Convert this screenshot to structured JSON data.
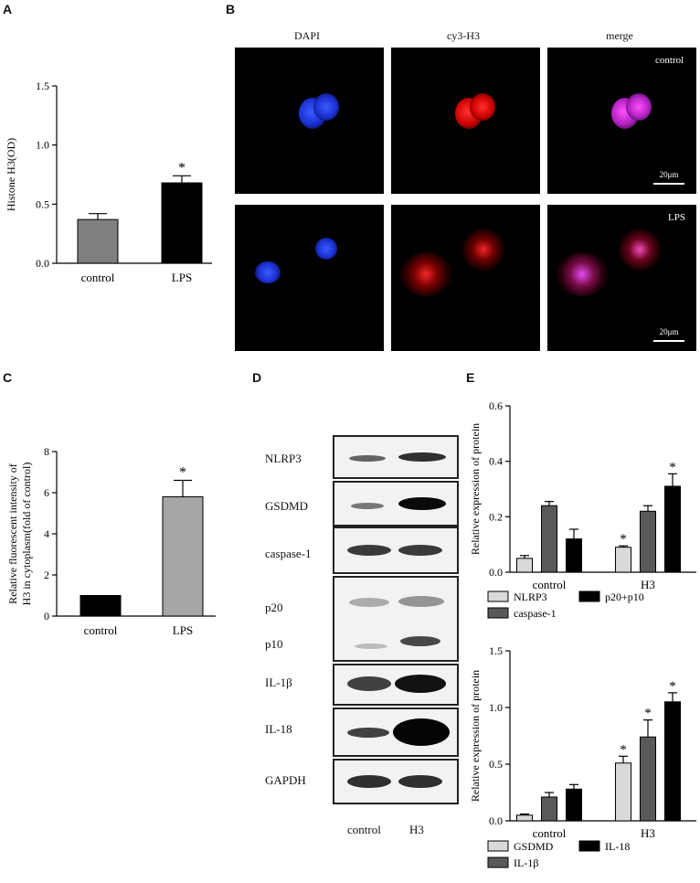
{
  "panels": {
    "A": "A",
    "B": "B",
    "C": "C",
    "D": "D",
    "E": "E"
  },
  "chart_A": {
    "type": "bar",
    "categories": [
      "control",
      "LPS"
    ],
    "values": [
      0.37,
      0.68
    ],
    "errors": [
      0.05,
      0.06
    ],
    "ylabel": "Histone H3(OD)",
    "ylim": [
      0,
      1.5
    ],
    "yticks": [
      "0.0",
      "0.5",
      "1.0",
      "1.5"
    ],
    "significance": [
      "",
      "*"
    ],
    "colors": [
      "#7f7f7f",
      "#000000"
    ]
  },
  "chart_C": {
    "type": "bar",
    "categories": [
      "control",
      "LPS"
    ],
    "values": [
      1.0,
      5.8
    ],
    "errors": [
      0.0,
      0.8
    ],
    "ylabel_line1": "Relative fluorescent intensity of",
    "ylabel_line2": "H3 in cytoplasm(fold of control)",
    "ylim": [
      0,
      8
    ],
    "yticks": [
      "0",
      "2",
      "4",
      "6",
      "8"
    ],
    "significance": [
      "",
      "*"
    ],
    "colors": [
      "#000000",
      "#a6a6a6"
    ]
  },
  "chart_E1": {
    "type": "bar",
    "categories": [
      "control",
      "H3"
    ],
    "series": [
      {
        "name": "NLRP3",
        "values": [
          0.05,
          0.09
        ],
        "errors": [
          0.01,
          0.005
        ],
        "color": "#d9d9d9"
      },
      {
        "name": "caspase-1",
        "values": [
          0.24,
          0.22
        ],
        "errors": [
          0.015,
          0.02
        ],
        "color": "#595959"
      },
      {
        "name": "p20+p10",
        "values": [
          0.12,
          0.31
        ],
        "errors": [
          0.035,
          0.045
        ],
        "color": "#000000"
      }
    ],
    "significance": [
      [
        "",
        "",
        ""
      ],
      [
        "*",
        "",
        "*"
      ]
    ],
    "ylabel": "Relative expression of protein",
    "ylim": [
      0,
      0.6
    ],
    "yticks": [
      "0.0",
      "0.2",
      "0.4",
      "0.6"
    ]
  },
  "chart_E2": {
    "type": "bar",
    "categories": [
      "control",
      "H3"
    ],
    "series": [
      {
        "name": "GSDMD",
        "values": [
          0.05,
          0.51
        ],
        "errors": [
          0.01,
          0.06
        ],
        "color": "#d9d9d9"
      },
      {
        "name": "IL-1β",
        "values": [
          0.21,
          0.74
        ],
        "errors": [
          0.04,
          0.15
        ],
        "color": "#595959"
      },
      {
        "name": "IL-18",
        "values": [
          0.28,
          1.05
        ],
        "errors": [
          0.04,
          0.08
        ],
        "color": "#000000"
      }
    ],
    "significance": [
      [
        "",
        "",
        ""
      ],
      [
        "*",
        "*",
        "*"
      ]
    ],
    "ylabel": "Relative expression of protein",
    "ylim": [
      0,
      1.5
    ],
    "yticks": [
      "0.0",
      "0.5",
      "1.0",
      "1.5"
    ]
  },
  "microscopy": {
    "columns": [
      "DAPI",
      "cy3-H3",
      "merge"
    ],
    "rows": [
      "control",
      "LPS"
    ],
    "scale_bar": "20μm"
  },
  "western_blot": {
    "rows": [
      "NLRP3",
      "GSDMD",
      "caspase-1",
      "p20",
      "p10",
      "IL-1β",
      "IL-18",
      "GAPDH"
    ],
    "lanes": [
      "control",
      "H3"
    ]
  }
}
